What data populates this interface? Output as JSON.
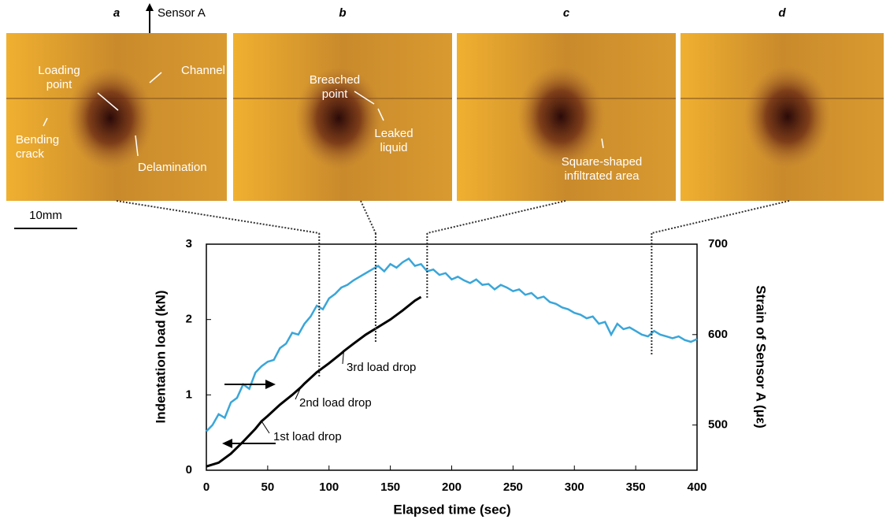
{
  "panels": [
    {
      "label": "a",
      "annotations": [
        [
          "Loading",
          "point"
        ],
        [
          "Channel"
        ],
        [
          "Bending",
          "crack"
        ],
        [
          "Delamination"
        ]
      ]
    },
    {
      "label": "b",
      "annotations": [
        [
          "Breached",
          "point"
        ],
        [
          "Leaked",
          "liquid"
        ]
      ]
    },
    {
      "label": "c",
      "annotations": [
        [
          "Square-shaped",
          "infiltrated area"
        ]
      ]
    },
    {
      "label": "d",
      "annotations": []
    }
  ],
  "sensor_label": "Sensor A",
  "scale_bar": "10mm",
  "chart_data": {
    "type": "line",
    "x_label": "Elapsed time (sec)",
    "y_label": "Indentation load (kN)",
    "y2_label": "Strain of Sensor A (με)",
    "xlim": [
      0,
      400
    ],
    "xticks": [
      0,
      50,
      100,
      150,
      200,
      250,
      300,
      350,
      400
    ],
    "ylim": [
      0,
      3
    ],
    "yticks": [
      0,
      1,
      2,
      3
    ],
    "y2lim": [
      450,
      700
    ],
    "y2ticks": [
      500,
      600,
      700
    ],
    "frame_times": [
      92,
      138,
      180,
      363
    ],
    "annotations": [
      "1st load drop",
      "2nd load drop",
      "3rd load drop"
    ],
    "series": [
      {
        "name": "Indentation load",
        "color": "#000000",
        "x": [
          0,
          10,
          20,
          30,
          40,
          45,
          50,
          60,
          70,
          77,
          80,
          90,
          100,
          110,
          112,
          120,
          130,
          140,
          150,
          160,
          170,
          175
        ],
        "values": [
          0.05,
          0.1,
          0.22,
          0.38,
          0.55,
          0.65,
          0.72,
          0.87,
          1.0,
          1.1,
          1.15,
          1.3,
          1.42,
          1.55,
          1.58,
          1.68,
          1.8,
          1.9,
          2.0,
          2.12,
          2.25,
          2.3
        ]
      },
      {
        "name": "Strain of Sensor A",
        "color": "#3aa6d9",
        "axis": "y2",
        "x": [
          0,
          5,
          10,
          15,
          20,
          25,
          30,
          35,
          40,
          45,
          50,
          55,
          60,
          65,
          70,
          75,
          80,
          85,
          90,
          95,
          100,
          105,
          110,
          115,
          120,
          125,
          130,
          135,
          140,
          145,
          150,
          155,
          160,
          165,
          170,
          175,
          180,
          185,
          190,
          195,
          200,
          205,
          210,
          215,
          220,
          225,
          230,
          235,
          240,
          245,
          250,
          255,
          260,
          265,
          270,
          275,
          280,
          285,
          290,
          295,
          300,
          305,
          310,
          315,
          320,
          325,
          330,
          335,
          340,
          345,
          350,
          355,
          360,
          365,
          370,
          375,
          380,
          385,
          390,
          395,
          400
        ],
        "values": [
          493,
          500,
          512,
          508,
          525,
          530,
          545,
          540,
          558,
          565,
          570,
          572,
          585,
          590,
          602,
          600,
          612,
          620,
          632,
          628,
          640,
          645,
          652,
          655,
          660,
          664,
          668,
          672,
          676,
          670,
          678,
          674,
          680,
          684,
          676,
          678,
          670,
          672,
          666,
          668,
          661,
          664,
          660,
          657,
          661,
          655,
          656,
          650,
          655,
          652,
          648,
          650,
          644,
          646,
          640,
          642,
          636,
          634,
          630,
          628,
          624,
          622,
          618,
          620,
          612,
          614,
          600,
          612,
          606,
          608,
          604,
          600,
          598,
          604,
          600,
          598,
          596,
          598,
          594,
          592,
          595
        ]
      }
    ]
  }
}
